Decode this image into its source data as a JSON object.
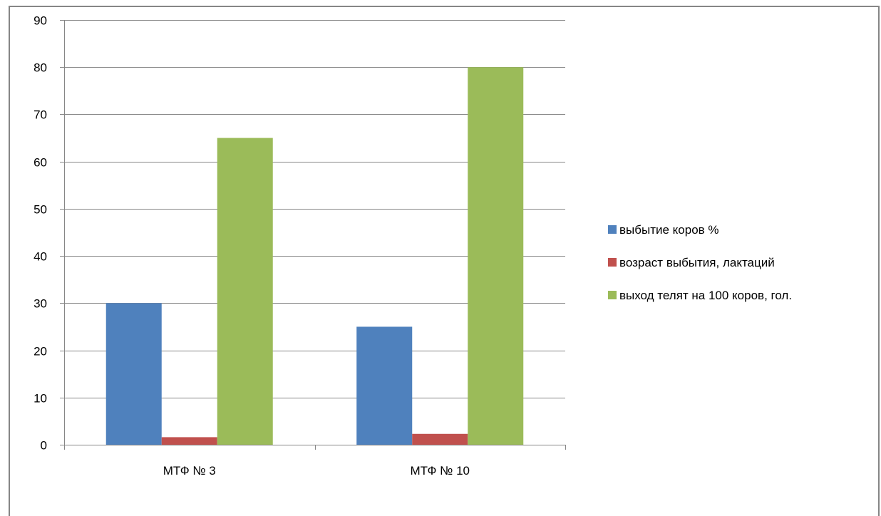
{
  "chart_data": {
    "type": "bar",
    "title": "",
    "xlabel": "",
    "ylabel": "",
    "categories": [
      "МТФ № 3",
      "МТФ № 10"
    ],
    "series": [
      {
        "name": "выбытие коров %",
        "values": [
          30,
          25
        ],
        "color": "#4f81bd"
      },
      {
        "name": "возраст выбытия, лактаций",
        "values": [
          1.6,
          2.3
        ],
        "color": "#c0504d"
      },
      {
        "name": "выход телят на 100 коров, гол.",
        "values": [
          65,
          80
        ],
        "color": "#9bbb59"
      }
    ],
    "ylim": [
      0,
      90
    ],
    "yticks": [
      "0",
      "10",
      "20",
      "30",
      "40",
      "50",
      "60",
      "70",
      "80",
      "90"
    ],
    "grid": true,
    "legend": "right"
  }
}
